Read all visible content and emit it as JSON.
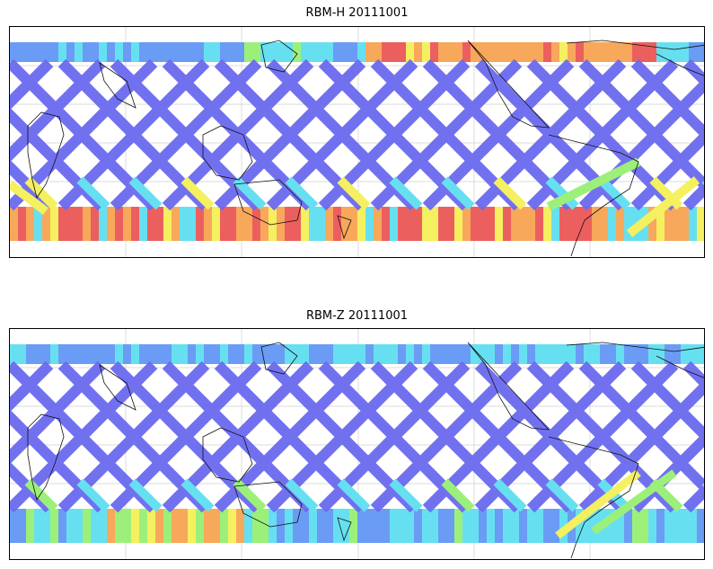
{
  "panels": [
    {
      "title": "RBM-H 20111001",
      "colormap": "jet",
      "low_color": "#6a6af0",
      "notes": "south-polar band strongly red/orange, northern-mid band orange/red near Americas"
    },
    {
      "title": "RBM-Z 20111001",
      "colormap": "jet",
      "low_color": "#6a6af0",
      "notes": "mostly blue, weaker yellow/orange in southern band"
    }
  ],
  "gridlines": true,
  "colors": {
    "blue": "#6a6af0",
    "blue_light": "#6a9cf5",
    "cyan": "#66e0f0",
    "green": "#9cf07a",
    "yellow": "#f4f060",
    "orange": "#f7a85a",
    "red": "#ec5f5f"
  }
}
